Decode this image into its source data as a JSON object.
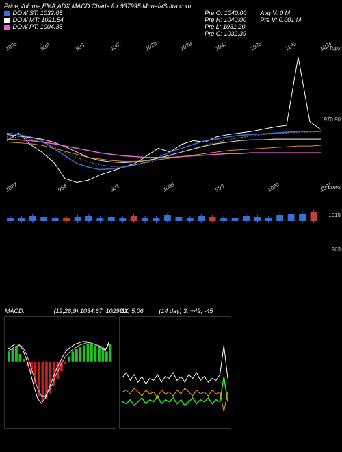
{
  "title": "Price,Volume,EMA,ADX,MACD Charts for 937995 MunafaSutra.com",
  "dow": {
    "st": {
      "label": "DOW ST:",
      "value": "1032.05",
      "color": "#3a6fd8"
    },
    "mt": {
      "label": "DOW MT:",
      "value": "1021.54",
      "color": "#ffffff"
    },
    "pt": {
      "label": "DOW PT:",
      "value": "1004.35",
      "color": "#e85fd8"
    }
  },
  "prev": {
    "o": {
      "label": "Pre   O:",
      "value": "1040.00"
    },
    "h": {
      "label": "Pre   H:",
      "value": "1040.00"
    },
    "l": {
      "label": "Pre   L:",
      "value": "1031.20"
    },
    "c": {
      "label": "Pre   C:",
      "value": "1032.39"
    }
  },
  "avg": {
    "v": {
      "label": "Avg V:",
      "value": "0  M"
    },
    "pv": {
      "label": "Pre   V:",
      "value": "0.001 M"
    }
  },
  "price_chart": {
    "yrange": [
      960,
      1140
    ],
    "right_label": "970.90",
    "top_edge": "<<Tops",
    "bot_edge": "<<Lows",
    "xlabels": [
      "1035",
      "992",
      "993",
      "1007",
      "1020",
      "1029",
      "1040",
      "1025",
      "1130",
      "1034"
    ],
    "bottom_xlabels": [
      "1027",
      "964",
      "991",
      "1006",
      "993",
      "1020",
      "1031"
    ],
    "series": {
      "white_close": {
        "color": "#ffffff",
        "width": 1,
        "y": [
          1020,
          1030,
          1015,
          1005,
          992,
          970,
          965,
          968,
          975,
          980,
          985,
          990,
          1000,
          1010,
          1005,
          1015,
          1020,
          1018,
          1025,
          1028,
          1030,
          1032,
          1035,
          1038,
          1040,
          1130,
          1045,
          1034
        ]
      },
      "blue_st": {
        "color": "#3a6fd8",
        "width": 1.5,
        "y": [
          1030,
          1028,
          1025,
          1020,
          1010,
          1000,
          990,
          985,
          982,
          983,
          985,
          988,
          992,
          998,
          1005,
          1010,
          1015,
          1020,
          1022,
          1025,
          1027,
          1028,
          1029,
          1030,
          1031,
          1032,
          1032,
          1032
        ]
      },
      "white_mt": {
        "color": "#cccccc",
        "width": 1.2,
        "y": [
          1028,
          1026,
          1024,
          1022,
          1018,
          1012,
          1005,
          998,
          994,
          992,
          991,
          992,
          994,
          997,
          1001,
          1005,
          1009,
          1013,
          1016,
          1018,
          1020,
          1021,
          1021,
          1022,
          1022,
          1022,
          1022,
          1022
        ]
      },
      "pink_pt": {
        "color": "#e85fd8",
        "width": 1.5,
        "y": [
          1022,
          1021,
          1020,
          1018,
          1016,
          1013,
          1010,
          1007,
          1004,
          1002,
          1000,
          999,
          998,
          998,
          998,
          999,
          1000,
          1001,
          1002,
          1003,
          1003,
          1004,
          1004,
          1004,
          1004,
          1004,
          1004,
          1004
        ]
      },
      "orange_ema": {
        "color": "#d88a3a",
        "width": 1,
        "y": [
          1018,
          1017,
          1016,
          1014,
          1010,
          1006,
          1002,
          998,
          996,
          994,
          993,
          993,
          994,
          995,
          997,
          999,
          1001,
          1003,
          1005,
          1007,
          1008,
          1009,
          1010,
          1011,
          1012,
          1013,
          1013,
          1014
        ]
      },
      "dotted": {
        "color": "#888888",
        "width": 1,
        "dash": "2,2",
        "y": [
          1025,
          1024,
          1022,
          1018,
          1012,
          1005,
          998,
          992,
          988,
          986,
          986,
          988,
          991,
          995,
          1000,
          1005,
          1010,
          1014,
          1018,
          1021,
          1024,
          1026,
          1028,
          1029,
          1030,
          1031,
          1031,
          1032
        ]
      }
    }
  },
  "volume_chart": {
    "right_top": "1015",
    "right_bot": "963",
    "bars": [
      {
        "h": 4,
        "c": "#3a6fd8"
      },
      {
        "h": 3,
        "c": "#3a6fd8"
      },
      {
        "h": 6,
        "c": "#3a6fd8"
      },
      {
        "h": 5,
        "c": "#3a6fd8"
      },
      {
        "h": 3,
        "c": "#3a6fd8"
      },
      {
        "h": 4,
        "c": "#c04040"
      },
      {
        "h": 5,
        "c": "#3a6fd8"
      },
      {
        "h": 7,
        "c": "#3a6fd8"
      },
      {
        "h": 3,
        "c": "#3a6fd8"
      },
      {
        "h": 5,
        "c": "#3a6fd8"
      },
      {
        "h": 4,
        "c": "#3a6fd8"
      },
      {
        "h": 6,
        "c": "#c04040"
      },
      {
        "h": 3,
        "c": "#3a6fd8"
      },
      {
        "h": 4,
        "c": "#3a6fd8"
      },
      {
        "h": 8,
        "c": "#3a6fd8"
      },
      {
        "h": 5,
        "c": "#3a6fd8"
      },
      {
        "h": 4,
        "c": "#3a6fd8"
      },
      {
        "h": 6,
        "c": "#3a6fd8"
      },
      {
        "h": 5,
        "c": "#c04040"
      },
      {
        "h": 4,
        "c": "#3a6fd8"
      },
      {
        "h": 3,
        "c": "#3a6fd8"
      },
      {
        "h": 7,
        "c": "#3a6fd8"
      },
      {
        "h": 5,
        "c": "#3a6fd8"
      },
      {
        "h": 4,
        "c": "#3a6fd8"
      },
      {
        "h": 8,
        "c": "#3a6fd8"
      },
      {
        "h": 10,
        "c": "#3a6fd8"
      },
      {
        "h": 9,
        "c": "#3a6fd8"
      },
      {
        "h": 12,
        "c": "#c04040"
      }
    ]
  },
  "macd": {
    "label": "MACD:",
    "params": "(12,26,9) 1034.67, 1029.61, 5.06",
    "bars": [
      8,
      10,
      12,
      6,
      2,
      -4,
      -10,
      -18,
      -28,
      -32,
      -30,
      -26,
      -20,
      -14,
      -8,
      -2,
      4,
      8,
      10,
      12,
      13,
      14,
      14,
      13,
      12,
      10,
      8,
      14
    ],
    "pos_color": "#20c020",
    "neg_color": "#c02020",
    "signal1": {
      "color": "#ffffff",
      "y": [
        10,
        12,
        14,
        14,
        10,
        2,
        -8,
        -20,
        -30,
        -34,
        -30,
        -22,
        -14,
        -6,
        0,
        6,
        10,
        12,
        14,
        15,
        16,
        16,
        15,
        14,
        13,
        11,
        9,
        16
      ]
    },
    "signal2": {
      "color": "#cccccc",
      "y": [
        8,
        10,
        12,
        13,
        12,
        6,
        -2,
        -12,
        -22,
        -28,
        -28,
        -24,
        -18,
        -10,
        -4,
        2,
        6,
        9,
        11,
        13,
        14,
        15,
        15,
        14,
        13,
        12,
        10,
        14
      ]
    }
  },
  "adx": {
    "label": "DX:",
    "params": "(14  day) 3, +49, -45",
    "white": {
      "color": "#ffffff",
      "y": [
        45,
        50,
        42,
        48,
        40,
        46,
        38,
        44,
        42,
        48,
        40,
        46,
        44,
        50,
        42,
        46,
        40,
        48,
        44,
        50,
        42,
        46,
        40,
        44,
        42,
        48,
        78,
        44
      ]
    },
    "green": {
      "color": "#20f020",
      "y": [
        20,
        18,
        22,
        16,
        20,
        24,
        18,
        22,
        20,
        26,
        18,
        22,
        20,
        24,
        18,
        22,
        16,
        20,
        24,
        18,
        22,
        20,
        24,
        18,
        22,
        20,
        46,
        20
      ]
    },
    "orange": {
      "color": "#f0a020",
      "y": [
        30,
        32,
        28,
        34,
        30,
        26,
        32,
        28,
        30,
        24,
        32,
        28,
        30,
        26,
        32,
        28,
        34,
        30,
        26,
        32,
        28,
        30,
        26,
        32,
        28,
        30,
        10,
        30
      ]
    }
  }
}
